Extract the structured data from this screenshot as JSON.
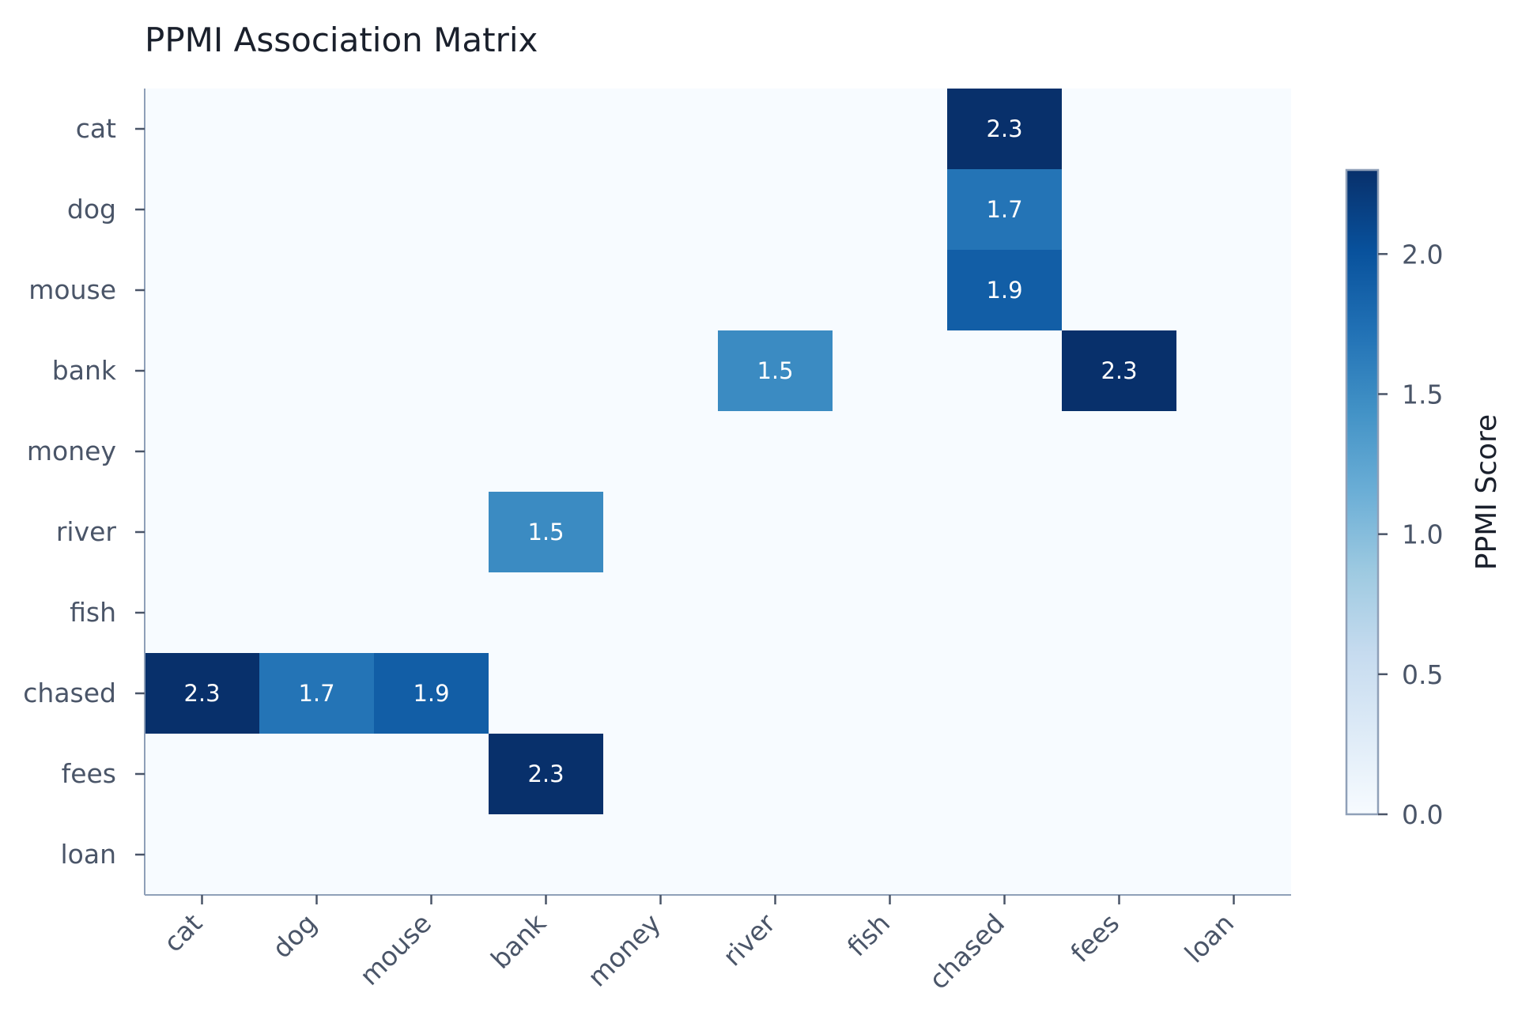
{
  "chart_data": {
    "type": "heatmap",
    "title": "PPMI Association Matrix",
    "rows": [
      "cat",
      "dog",
      "mouse",
      "bank",
      "money",
      "river",
      "fish",
      "chased",
      "fees",
      "loan"
    ],
    "columns": [
      "cat",
      "dog",
      "mouse",
      "bank",
      "money",
      "river",
      "fish",
      "chased",
      "fees",
      "loan"
    ],
    "values": [
      [
        0,
        0,
        0,
        0,
        0,
        0,
        0,
        2.3,
        0,
        0
      ],
      [
        0,
        0,
        0,
        0,
        0,
        0,
        0,
        1.7,
        0,
        0
      ],
      [
        0,
        0,
        0,
        0,
        0,
        0,
        0,
        1.9,
        0,
        0
      ],
      [
        0,
        0,
        0,
        0,
        0,
        1.5,
        0,
        0,
        2.3,
        0
      ],
      [
        0,
        0,
        0,
        0,
        0,
        0,
        0,
        0,
        0,
        0
      ],
      [
        0,
        0,
        0,
        1.5,
        0,
        0,
        0,
        0,
        0,
        0
      ],
      [
        0,
        0,
        0,
        0,
        0,
        0,
        0,
        0,
        0,
        0
      ],
      [
        2.3,
        1.7,
        1.9,
        0,
        0,
        0,
        0,
        0,
        0,
        0
      ],
      [
        0,
        0,
        0,
        2.3,
        0,
        0,
        0,
        0,
        0,
        0
      ],
      [
        0,
        0,
        0,
        0,
        0,
        0,
        0,
        0,
        0,
        0
      ]
    ],
    "colorbar": {
      "label": "PPMI Score",
      "range": [
        0,
        2.3
      ],
      "ticks": [
        "0.0",
        "0.5",
        "1.0",
        "1.5",
        "2.0"
      ],
      "colormap": "Blues"
    },
    "colors": {
      "low": "#f7fbff",
      "high": "#08306b",
      "axis": "#8fa0b8",
      "text_dark_cell": "#ffffff"
    }
  }
}
